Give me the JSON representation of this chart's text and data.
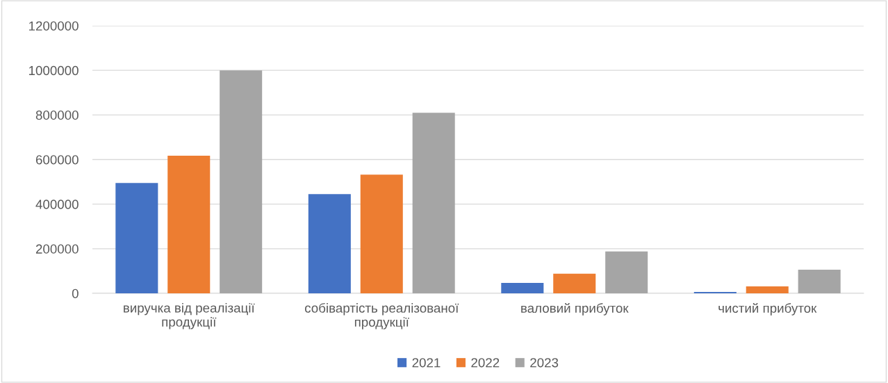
{
  "chart_data": {
    "type": "bar",
    "categories": [
      "виручка від реалізації продукції",
      "собівартість реалізованої продукції",
      "валовий прибуток",
      "чистий прибуток"
    ],
    "series": [
      {
        "name": "2021",
        "color": "#4472c4",
        "values": [
          495000,
          445000,
          47000,
          6000
        ]
      },
      {
        "name": "2022",
        "color": "#ed7d31",
        "values": [
          617000,
          532000,
          88000,
          31000
        ]
      },
      {
        "name": "2023",
        "color": "#a5a5a5",
        "values": [
          1000000,
          810000,
          188000,
          106000
        ]
      }
    ],
    "ylim": [
      0,
      1200000
    ],
    "yticks": [
      0,
      200000,
      400000,
      600000,
      800000,
      1000000,
      1200000
    ],
    "grid": "y",
    "legend": "bottom"
  }
}
